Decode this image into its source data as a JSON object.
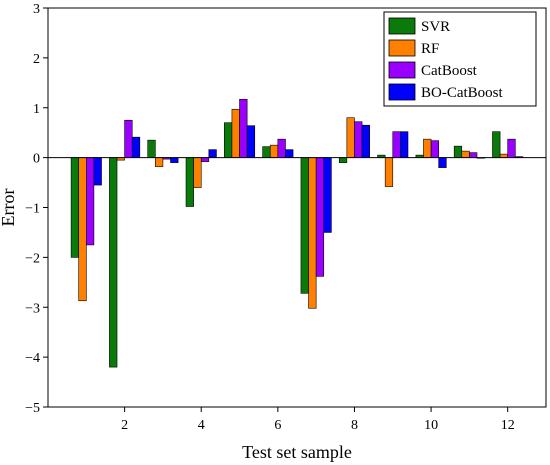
{
  "chart_data": {
    "type": "bar",
    "title": "",
    "xlabel": "Test set sample",
    "ylabel": "Error",
    "categories": [
      1,
      2,
      3,
      4,
      5,
      6,
      7,
      8,
      9,
      10,
      11,
      12
    ],
    "xtick_labels": [
      "2",
      "4",
      "6",
      "8",
      "10",
      "12"
    ],
    "xtick_values": [
      2,
      4,
      6,
      8,
      10,
      12
    ],
    "xlim": [
      0,
      13
    ],
    "ylim": [
      -5,
      3
    ],
    "yticks": [
      -5,
      -4,
      -3,
      -2,
      -1,
      0,
      1,
      2,
      3
    ],
    "ytick_labels": [
      "−5",
      "−4",
      "−3",
      "−2",
      "−1",
      "0",
      "1",
      "2",
      "3"
    ],
    "grid": false,
    "legend_position": "top-right",
    "series": [
      {
        "name": "SVR",
        "color": "#0a7a0a",
        "values": [
          -2.0,
          -4.2,
          0.35,
          -0.98,
          0.7,
          0.22,
          -2.72,
          -0.1,
          0.05,
          0.05,
          0.23,
          0.52
        ]
      },
      {
        "name": "RF",
        "color": "#ff8000",
        "values": [
          -2.87,
          -0.05,
          -0.18,
          -0.6,
          0.97,
          0.25,
          -3.02,
          0.8,
          -0.58,
          0.37,
          0.13,
          0.07
        ]
      },
      {
        "name": "CatBoost",
        "color": "#9900ff",
        "values": [
          -1.75,
          0.75,
          -0.03,
          -0.08,
          1.17,
          0.37,
          -2.38,
          0.72,
          0.52,
          0.34,
          0.1,
          0.37
        ]
      },
      {
        "name": "BO-CatBoost",
        "color": "#0000ff",
        "values": [
          -0.55,
          0.41,
          -0.1,
          0.16,
          0.64,
          0.16,
          -1.5,
          0.65,
          0.52,
          -0.2,
          0.0,
          0.02
        ]
      }
    ]
  }
}
